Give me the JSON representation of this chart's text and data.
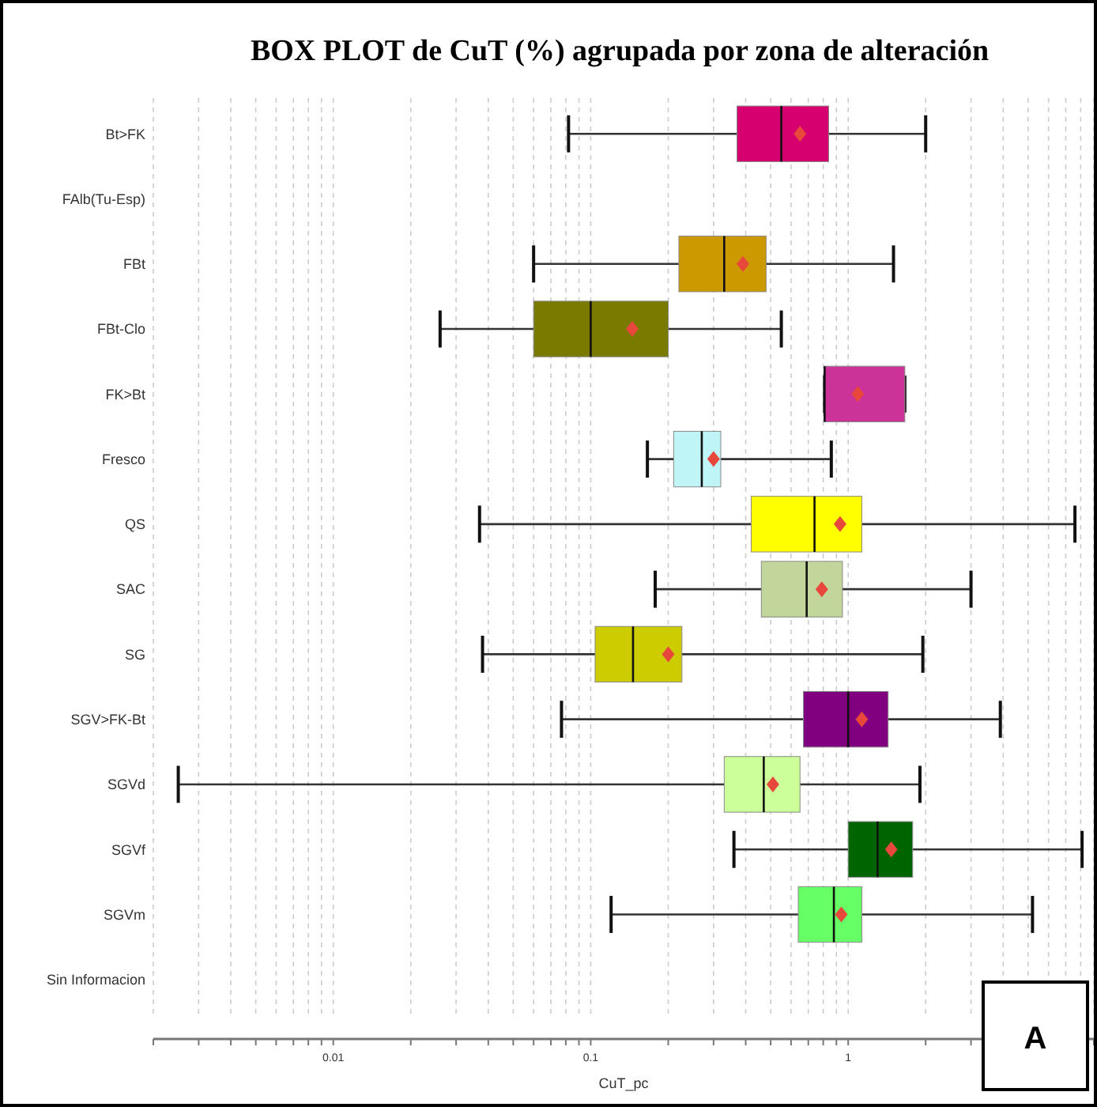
{
  "chart_data": {
    "type": "box",
    "orientation": "horizontal",
    "log": "x",
    "grid": "x",
    "title": "BOX PLOT de CuT (%) agrupada por zona de alteración",
    "xlabel": "CuT_pc",
    "annotations": [
      "A"
    ],
    "categories": [
      "Bt>FK",
      "FAlb(Tu-Esp)",
      "FBt",
      "FBt-Clo",
      "FK>Bt",
      "Fresco",
      "QS",
      "SAC",
      "SG",
      "SGV>FK-Bt",
      "SGVd",
      "SGVf",
      "SGVm",
      "Sin Informacion"
    ],
    "colors": [
      "#d6006e",
      null,
      "#cc9900",
      "#7a7a00",
      "#cc3399",
      "#bff5f7",
      "#ffff00",
      "#c2d69b",
      "#cccc00",
      "#800080",
      "#ccff99",
      "#006400",
      "#66ff66",
      null
    ],
    "boxes": [
      {
        "low": 0.082,
        "q1": 0.37,
        "median": 0.55,
        "q3": 0.84,
        "high": 2.0,
        "mean": 0.65
      },
      null,
      {
        "low": 0.06,
        "q1": 0.22,
        "median": 0.33,
        "q3": 0.48,
        "high": 1.5,
        "mean": 0.39
      },
      {
        "low": 0.026,
        "q1": 0.06,
        "median": 0.1,
        "q3": 0.2,
        "high": 0.55,
        "mean": 0.145
      },
      {
        "low": 0.81,
        "q1": 0.81,
        "median": 0.81,
        "q3": 1.66,
        "high": 1.66,
        "mean": 1.09
      },
      {
        "low": 0.166,
        "q1": 0.21,
        "median": 0.27,
        "q3": 0.32,
        "high": 0.86,
        "mean": 0.3
      },
      {
        "low": 0.037,
        "q1": 0.42,
        "median": 0.74,
        "q3": 1.13,
        "high": 7.6,
        "mean": 0.93
      },
      {
        "low": 0.178,
        "q1": 0.46,
        "median": 0.69,
        "q3": 0.95,
        "high": 3.0,
        "mean": 0.79
      },
      {
        "low": 0.038,
        "q1": 0.104,
        "median": 0.146,
        "q3": 0.226,
        "high": 1.95,
        "mean": 0.2
      },
      {
        "low": 0.077,
        "q1": 0.67,
        "median": 1.0,
        "q3": 1.43,
        "high": 3.9,
        "mean": 1.13
      },
      {
        "low": 0.0025,
        "q1": 0.33,
        "median": 0.47,
        "q3": 0.65,
        "high": 1.9,
        "mean": 0.51
      },
      {
        "low": 0.36,
        "q1": 1.0,
        "median": 1.3,
        "q3": 1.78,
        "high": 8.1,
        "mean": 1.47
      },
      {
        "low": 0.12,
        "q1": 0.64,
        "median": 0.88,
        "q3": 1.13,
        "high": 5.2,
        "mean": 0.94
      },
      null
    ],
    "xlim": [
      0.002,
      9
    ],
    "xticks": [
      {
        "value": 0.002,
        "label": null
      },
      {
        "value": 0.003,
        "label": null
      },
      {
        "value": 0.004,
        "label": null
      },
      {
        "value": 0.005,
        "label": null
      },
      {
        "value": 0.006,
        "label": null
      },
      {
        "value": 0.007,
        "label": null
      },
      {
        "value": 0.008,
        "label": null
      },
      {
        "value": 0.009,
        "label": null
      },
      0.01,
      {
        "value": 0.02,
        "label": null
      },
      {
        "value": 0.03,
        "label": null
      },
      {
        "value": 0.04,
        "label": null
      },
      {
        "value": 0.05,
        "label": null
      },
      {
        "value": 0.06,
        "label": null
      },
      {
        "value": 0.07,
        "label": null
      },
      {
        "value": 0.08,
        "label": null
      },
      {
        "value": 0.09,
        "label": null
      },
      0.1,
      {
        "value": 0.2,
        "label": null
      },
      {
        "value": 0.3,
        "label": null
      },
      {
        "value": 0.4,
        "label": null
      },
      {
        "value": 0.5,
        "label": null
      },
      {
        "value": 0.6,
        "label": null
      },
      {
        "value": 0.7,
        "label": null
      },
      {
        "value": 0.8,
        "label": null
      },
      {
        "value": 0.9,
        "label": null
      },
      1,
      {
        "value": 2,
        "label": null
      },
      {
        "value": 3,
        "label": null
      },
      {
        "value": 4,
        "label": null
      },
      {
        "value": 5,
        "label": null
      },
      {
        "value": 6,
        "label": null
      },
      {
        "value": 7,
        "label": null
      },
      {
        "value": 8,
        "label": null
      },
      {
        "value": 9,
        "label": null
      }
    ]
  }
}
